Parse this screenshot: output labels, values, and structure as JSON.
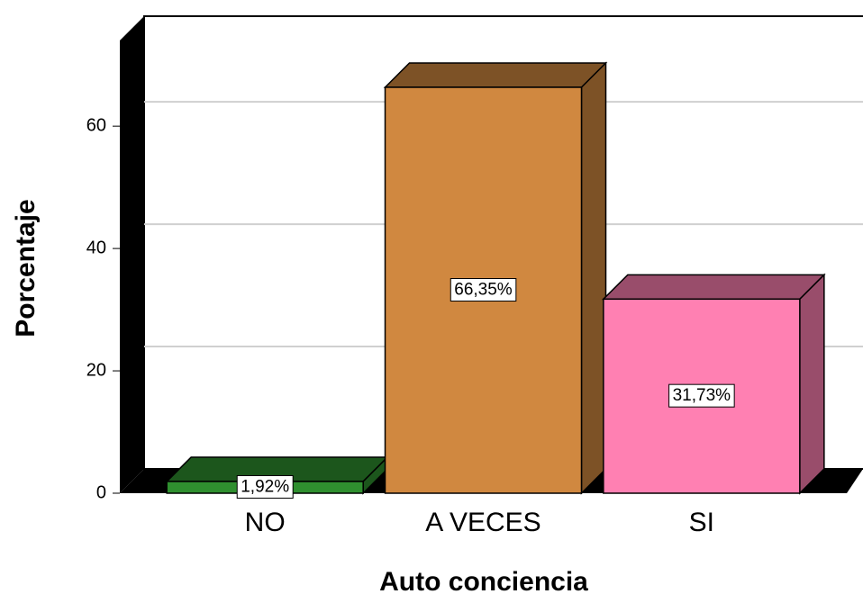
{
  "chart_data": {
    "type": "bar3d",
    "x_label": "Auto conciencia",
    "y_label": "Porcentaje",
    "categories": [
      "NO",
      "A VECES",
      "SI"
    ],
    "values": [
      1.92,
      66.35,
      31.73
    ],
    "value_labels": [
      "1,92%",
      "66,35%",
      "31,73%"
    ],
    "colors": [
      "#2f8f2f",
      "#d08840",
      "#ff80b2"
    ],
    "ylim": [
      0,
      74
    ],
    "yticks": [
      0,
      20,
      40,
      60
    ],
    "grid": true
  }
}
